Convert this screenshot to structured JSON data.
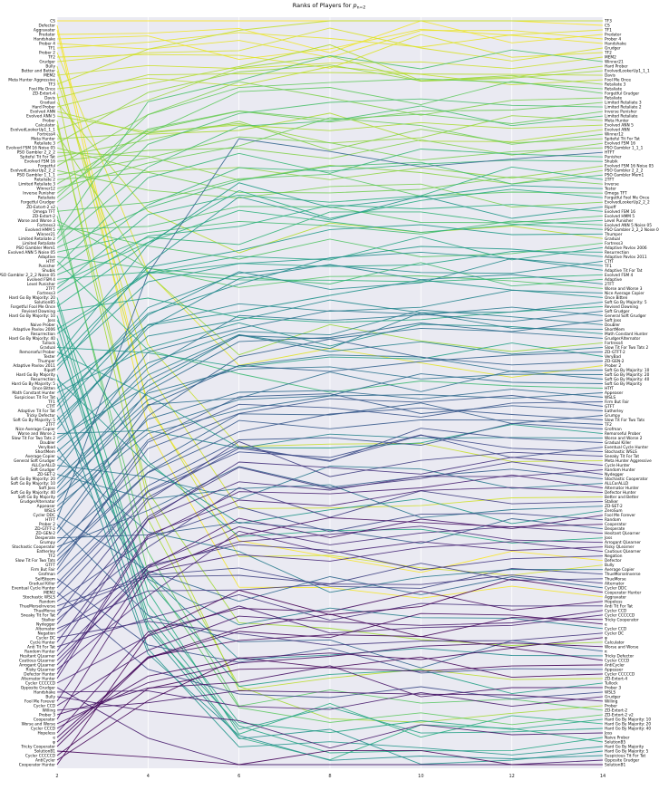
{
  "chart_data": {
    "type": "line",
    "title": "Ranks of Players for p_n=2",
    "title_prefix": "Ranks of Players for ",
    "title_symbol": "p",
    "title_subscript": "n=2",
    "xlabel": "",
    "ylabel": "",
    "x": [
      2,
      4,
      6,
      8,
      10,
      12,
      14
    ],
    "x_ticks": [
      "2",
      "4",
      "6",
      "8",
      "10",
      "12",
      "14"
    ],
    "xlim": [
      2,
      14
    ],
    "grid": true,
    "background": "#eaeaf2",
    "colormap": "viridis",
    "left_labels": [
      "CS",
      "Defector",
      "Aggravater",
      "Predator",
      "Handshake",
      "Prober 4",
      "TF1",
      "Prober 2",
      "TF2",
      "Grudger",
      "Bully",
      "Better and Better",
      "MEM2",
      "Meta Hunter Aggressive",
      "TF3",
      "Fool Me Once",
      "ZD-Extort-4",
      "Davis",
      "Gradual",
      "Hard Prober",
      "Evolved ANN",
      "Evolved ANN 5",
      "Prober",
      "Calculator",
      "EvolvedLookerUp1_1_1",
      "Fortress4",
      "Meta Hunter",
      "Retaliate 3",
      "Evolved FSM 16 Noise 05",
      "PSO Gambler 2_2_2",
      "Spiteful Tit For Tat",
      "Evolved FSM 16",
      "Forgetful",
      "EvolvedLookerUp2_2_2",
      "PSO Gambler 1_1_1",
      "Retaliate 2",
      "Limited Retaliate 3",
      "Winner12",
      "Inverse Punisher",
      "Retaliate",
      "Forgetful Grudger",
      "ZD-Extort-2 v2",
      "Omega TFT",
      "ZD-Extort-2",
      "Worse and Worse 3",
      "Fortress3",
      "Evolved HMM 5",
      "Winner21",
      "Limited Retaliate 2",
      "Limited Retaliate",
      "PSO Gambler Mem1",
      "Evolved ANN 5 Noise 05",
      "Adaptive",
      "HTfT",
      "Punisher",
      "Shubik",
      "PSO Gambler 2_2_2 Noise 05",
      "Evolved FSM 4",
      "Level Punisher",
      "2TFT",
      "Fortress3",
      "Hard Go By Majority: 20",
      "SolutionB5",
      "Forgetful Fool Me Once",
      "Revised Downing",
      "Hard Go By Majority: 10",
      "Joss",
      "Naive Prober",
      "Adaptive Pavlov 2006",
      "Resurrection",
      "Hard Go By Majority: 40",
      "Tullock",
      "Gradual",
      "Remorseful Prober",
      "Tester",
      "Thumper",
      "Adaptive Pavlov 2011",
      "Ripoff",
      "Hard Go By Majority",
      "Resurrection",
      "Hard Go By Majority: 5",
      "Once Bitten",
      "Math Constant Hunter",
      "Suspicious Tit For Tat",
      "TF1",
      "CTfT",
      "Adaptive Tit For Tat",
      "Tricky Defector",
      "Soft Go By Majority: 5",
      "2TFT",
      "Nice Average Copier",
      "Worse and Worse 2",
      "Slow Tit For Two Tats 2",
      "Doubler",
      "Verylbad",
      "ShortMem",
      "Average Copier",
      "General Soft Grudger",
      "ALLCorALLD",
      "Soft Grudger",
      "ZD-SET-2",
      "Soft Go By Majority: 20",
      "Soft Go By Majority: 10",
      "Soft Joss",
      "Soft Go By Majority: 40",
      "Soft Go By Majority",
      "GrudgerAlternator",
      "Appeaser",
      "WSLS",
      "Cycler DDC",
      "HTFT",
      "Prober 2",
      "ZD-GTFT-2",
      "ZD-GEN-2",
      "Desperate",
      "Grumpy",
      "Stochastic Cooperator",
      "Eatherley",
      "TF2",
      "Slow Tit For Two Tats",
      "GTFT",
      "Firm But Fair",
      "Grofman",
      "SelfSteem",
      "Gradual Killer",
      "Eventual Cycle Hunter",
      "MEM2",
      "Stochastic WSLS",
      "Random",
      "ThueMorseInverse",
      "ThueMorse",
      "Sneaky Tit For Tat",
      "Stalker",
      "Nydegger",
      "Alternator",
      "Negation",
      "Cycler DC",
      "Cycle Hunter",
      "Anti Tit For Tat",
      "Random Hunter",
      "Hesitant QLearner",
      "Cautious QLearner",
      "Arrogant QLearner",
      "Risky QLearner",
      "Defector Hunter",
      "Alternator Hunter",
      "Cycler CCCCCD",
      "Opposite Grudger",
      "Handshake",
      "Bully",
      "Fool Me Forever",
      "Cycler CCD",
      "Willing",
      "Prober 3",
      "Cooperator",
      "Worse and Worse",
      "Cycler CCCD",
      "Hopeless",
      "e",
      "φ",
      "Tricky Cooperator",
      "SolutionB1",
      "Cycler CCCCCD",
      "AntiCycler",
      "Cooperator Hunter"
    ],
    "right_labels": [
      "TF3",
      "CS",
      "TF1",
      "Predator",
      "Prober 4",
      "Handshake",
      "Grudger",
      "TF2",
      "MEM2",
      "Winner21",
      "Hard Prober",
      "EvolvedLookerUp1_1_1",
      "Davis",
      "Fool Me Once",
      "Retaliate 3",
      "Retaliate",
      "Forgetful Grudger",
      "Retaliate",
      "Limited Retaliate 3",
      "Limited Retaliate 2",
      "Inverse Punisher",
      "Limited Retaliate",
      "Meta Hunter",
      "Evolved ANN 5",
      "Evolved ANN",
      "Winner12",
      "Spiteful Tit For Tat",
      "Evolved FSM 16",
      "PSO Gambler 1_1_1",
      "HTFT",
      "Punisher",
      "Shubik",
      "Evolved FSM 16 Noise 05",
      "PSO Gambler 2_2_2",
      "PSO Gambler Mem1",
      "2TFT",
      "Inverse",
      "Tester",
      "Omega TFT",
      "Forgetful Fool Me Once",
      "EvolvedLookerUp2_2_2",
      "Ripoff",
      "Evolved FSM 16",
      "Evolved HMM 5",
      "Level Punisher",
      "Evolved ANN 5 Noise 05",
      "PSO Gambler 2_2_2 Noise 05",
      "Thumper",
      "Gradual",
      "Fortress3",
      "Adaptive Pavlov 2006",
      "Resurrection",
      "Adaptive Pavlov 2011",
      "CTfT",
      "TF1",
      "Adaptive Tit For Tat",
      "Evolved FSM 4",
      "Adaptive",
      "2TFT",
      "Worse and Worse 3",
      "Nice Average Copier",
      "Once Bitten",
      "Soft Go By Majority: 5",
      "Revised Downing",
      "Soft Grudger",
      "General Soft Grudger",
      "Soft Joss",
      "Doubler",
      "ShortMem",
      "Math Constant Hunter",
      "GrudgerAlternator",
      "Fortress4",
      "Slow Tit For Two Tats 2",
      "ZD-GTFT-2",
      "VeryBad",
      "ZD-GEN-2",
      "Prober 2",
      "Soft Go By Majority: 10",
      "Soft Go By Majority: 20",
      "Soft Go By Majority: 40",
      "Soft Go By Majority",
      "HTfT",
      "Appeaser",
      "WSLS",
      "Firm But Fair",
      "GTFT",
      "Eatherley",
      "Grumpy",
      "Slow Tit For Two Tats",
      "TF2",
      "Grofman",
      "Remorseful Prober",
      "Worse and Worse 2",
      "Gradual Killer",
      "Eventual Cycle Hunter",
      "Stochastic WSLS",
      "Sneaky Tit For Tat",
      "Meta Hunter Aggressive",
      "Cycle Hunter",
      "Random Hunter",
      "Nydegger",
      "Stochastic Cooperator",
      "ALLCorALLD",
      "Alternator Hunter",
      "Defector Hunter",
      "Better and Better",
      "Stalker",
      "ZD-SET-2",
      "ZeroSum",
      "Fool Me Forever",
      "Random",
      "Cooperator",
      "Desperate",
      "Hesitant QLearner",
      "Joss",
      "Arrogant QLearner",
      "Risky QLearner",
      "Cautious QLearner",
      "Negation",
      "Defector",
      "Bully",
      "Average Copier",
      "ThueMorseInverse",
      "ThueMorse",
      "Alternator",
      "Cycler DDC",
      "Cooperator Hunter",
      "Aggravater",
      "Hopeless",
      "Anti Tit For Tat",
      "Cycler CCD",
      "Cycler CCCCCD",
      "Tricky Cooperator",
      "e",
      "Cycler CCD",
      "Cycler DC",
      "φ",
      "Calculator",
      "Worse and Worse",
      "π",
      "Tricky Defector",
      "Cycler CCCD",
      "AntiCycler",
      "Appeaser",
      "Cycler CCCCCD",
      "ZD-Extort-4",
      "Tullock",
      "Prober 3",
      "WSLS",
      "Grudger",
      "Willing",
      "Prober",
      "ZD-Extort-2",
      "ZD-Extort-2 v2",
      "Hard Go By Majority: 10",
      "Hard Go By Majority: 20",
      "Hard Go By Majority: 40",
      "Joss",
      "Naive Prober",
      "SolutionB5",
      "Hard Go By Majority",
      "Hard Go By Majority: 5",
      "Suspicious Tit For Tat",
      "Opposite Grudger",
      "SolutionB1"
    ]
  }
}
